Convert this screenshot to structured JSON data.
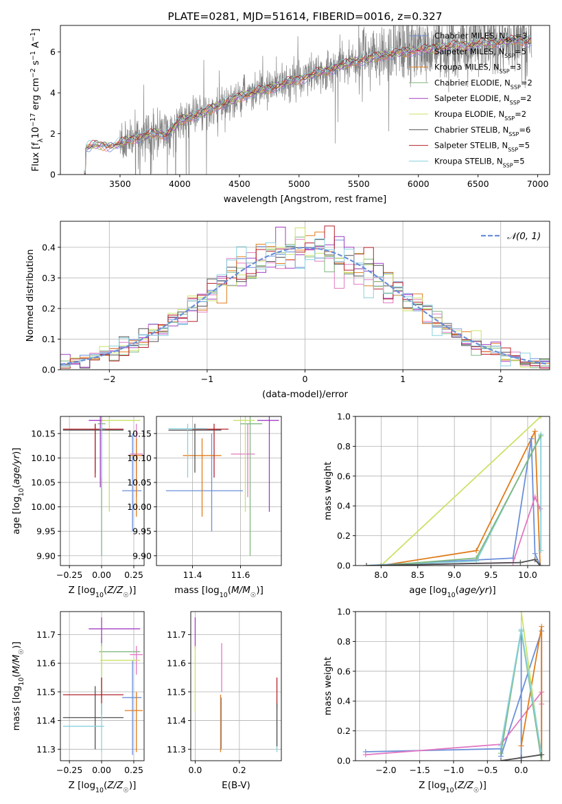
{
  "chart_data": [
    {
      "panel": "spectrum",
      "type": "line",
      "title": "PLATE=0281, MJD=51614, FIBERID=0016, z=0.327",
      "xlabel": "wavelength [Angstrom, rest frame]",
      "ylabel": "Flux [f_λ 10^-17 erg cm^-2 s^-1 A^-1]",
      "xlim": [
        3000,
        7100
      ],
      "ylim": [
        0,
        7.3
      ],
      "xticks": [
        "3500",
        "4000",
        "4500",
        "5000",
        "5500",
        "6000",
        "6500",
        "7000"
      ],
      "yticks": [
        "0",
        "2",
        "4",
        "6"
      ],
      "data_color": "#808080",
      "legend_position": "upper right",
      "legend": [
        {
          "name": "Chabrier MILES, N_SSP=3",
          "color": "#6a8fd8"
        },
        {
          "name": "Salpeter MILES, N_SSP=5",
          "color": "#e377c2"
        },
        {
          "name": "Kroupa MILES, N_SSP=3",
          "color": "#e07b1a"
        },
        {
          "name": "Chabrier ELODIE, N_SSP=2",
          "color": "#7fb77e"
        },
        {
          "name": "Salpeter ELODIE, N_SSP=2",
          "color": "#a23cc2"
        },
        {
          "name": "Kroupa ELODIE, N_SSP=2",
          "color": "#c9e265"
        },
        {
          "name": "Chabrier STELIB, N_SSP=6",
          "color": "#505050"
        },
        {
          "name": "Salpeter STELIB, N_SSP=5",
          "color": "#b5202a"
        },
        {
          "name": "Kroupa STELIB, N_SSP=5",
          "color": "#86d1dd"
        }
      ],
      "model_trend": [
        [
          3200,
          0
        ],
        [
          3210,
          1.3
        ],
        [
          3300,
          1.45
        ],
        [
          3450,
          1.4
        ],
        [
          3520,
          1.55
        ],
        [
          3600,
          1.75
        ],
        [
          3700,
          1.9
        ],
        [
          3800,
          2.0
        ],
        [
          3880,
          1.95
        ],
        [
          3950,
          2.3
        ],
        [
          4000,
          2.6
        ],
        [
          4100,
          2.85
        ],
        [
          4200,
          3.05
        ],
        [
          4300,
          3.3
        ],
        [
          4400,
          3.55
        ],
        [
          4500,
          3.8
        ],
        [
          4600,
          4.0
        ],
        [
          4700,
          4.15
        ],
        [
          4800,
          4.3
        ],
        [
          4900,
          4.5
        ],
        [
          5000,
          4.7
        ],
        [
          5100,
          4.85
        ],
        [
          5200,
          5.05
        ],
        [
          5300,
          5.25
        ],
        [
          5400,
          5.4
        ],
        [
          5500,
          5.6
        ],
        [
          5600,
          5.7
        ],
        [
          5700,
          5.8
        ],
        [
          5800,
          5.95
        ],
        [
          5900,
          6.0
        ],
        [
          6000,
          6.1
        ],
        [
          6100,
          6.15
        ],
        [
          6200,
          6.25
        ],
        [
          6300,
          6.3
        ],
        [
          6400,
          6.35
        ],
        [
          6500,
          6.4
        ],
        [
          6600,
          6.45
        ],
        [
          6700,
          6.5
        ],
        [
          6800,
          6.55
        ],
        [
          6950,
          6.55
        ]
      ]
    },
    {
      "panel": "residuals",
      "type": "histogram",
      "xlabel": "(data-model)/error",
      "ylabel": "Normed distribution",
      "xlim": [
        -2.5,
        2.5
      ],
      "ylim": [
        0,
        0.485
      ],
      "xticks": [
        "−2",
        "−1",
        "0",
        "1",
        "2"
      ],
      "yticks": [
        "0.0",
        "0.1",
        "0.2",
        "0.3",
        "0.4"
      ],
      "legend": [
        {
          "name": "𝒩(0, 1)",
          "color": "#6a8fd8"
        }
      ],
      "series_colors": [
        "#6a8fd8",
        "#e377c2",
        "#e07b1a",
        "#7fb77e",
        "#a23cc2",
        "#c9e265",
        "#505050",
        "#b5202a",
        "#86d1dd"
      ]
    },
    {
      "panel": "Z_vs_age",
      "type": "scatter",
      "xlabel": "Z [log10(Z/Z☉)]",
      "ylabel": "age [log10(age/yr)]",
      "xlim": [
        -0.32,
        0.33
      ],
      "ylim": [
        9.88,
        10.185
      ],
      "xticks": [
        "−0.25",
        "0.00",
        "0.25"
      ],
      "yticks": [
        "9.90",
        "9.95",
        "10.00",
        "10.05",
        "10.10",
        "10.15"
      ],
      "points": [
        {
          "color": "#6a8fd8",
          "x": 0.24,
          "y": 10.033,
          "xe": [
            0.16,
            0.31
          ],
          "ye": [
            9.95,
            10.15
          ]
        },
        {
          "color": "#e377c2",
          "x": 0.27,
          "y": 10.108,
          "xe": [
            0.22,
            0.32
          ],
          "ye": [
            10.02,
            10.17
          ]
        },
        {
          "color": "#e07b1a",
          "x": 0.27,
          "y": 10.105,
          "xe": [
            0.21,
            0.32
          ],
          "ye": [
            9.98,
            10.14
          ]
        },
        {
          "color": "#7fb77e",
          "x": 0.0,
          "y": 10.17,
          "xe": [
            -0.03,
            0.03
          ],
          "ye": [
            9.9,
            10.185
          ]
        },
        {
          "color": "#a23cc2",
          "x": -0.01,
          "y": 10.177,
          "xe": [
            -0.1,
            0.03
          ],
          "ye": [
            10.04,
            10.185
          ]
        },
        {
          "color": "#c9e265",
          "x": 0.06,
          "y": 10.177,
          "xe": [
            0.0,
            0.3
          ],
          "ye": [
            9.99,
            10.185
          ]
        },
        {
          "color": "#505050",
          "x": -0.05,
          "y": 10.157,
          "xe": [
            -0.3,
            0.17
          ],
          "ye": [
            10.07,
            10.17
          ]
        },
        {
          "color": "#b5202a",
          "x": -0.05,
          "y": 10.159,
          "xe": [
            -0.3,
            0.17
          ],
          "ye": [
            10.06,
            10.17
          ]
        },
        {
          "color": "#86d1dd",
          "x": 0.0,
          "y": 10.16,
          "xe": [
            -0.02,
            0.03
          ],
          "ye": [
            10.06,
            10.17
          ]
        }
      ]
    },
    {
      "panel": "mass_vs_age",
      "type": "scatter",
      "xlabel": "mass [log10(M/M☉)]",
      "ylabel": "",
      "xlim": [
        11.25,
        11.77
      ],
      "ylim": [
        9.88,
        10.185
      ],
      "xticks": [
        "11.4",
        "11.6"
      ],
      "yticks": [
        "9.90",
        "9.95",
        "10.00",
        "10.05",
        "10.10",
        "10.15"
      ],
      "points": [
        {
          "color": "#6a8fd8",
          "x": 11.48,
          "y": 10.033,
          "xe": [
            11.29,
            11.61
          ],
          "ye": [
            9.95,
            10.15
          ]
        },
        {
          "color": "#e377c2",
          "x": 11.63,
          "y": 10.108,
          "xe": [
            11.56,
            11.66
          ],
          "ye": [
            10.02,
            10.17
          ]
        },
        {
          "color": "#e07b1a",
          "x": 11.44,
          "y": 10.105,
          "xe": [
            11.36,
            11.52
          ],
          "ye": [
            9.98,
            10.14
          ]
        },
        {
          "color": "#7fb77e",
          "x": 11.64,
          "y": 10.17,
          "xe": [
            11.6,
            11.69
          ],
          "ye": [
            9.9,
            10.185
          ]
        },
        {
          "color": "#a23cc2",
          "x": 11.72,
          "y": 10.177,
          "xe": [
            11.67,
            11.76
          ],
          "ye": [
            9.99,
            10.185
          ]
        },
        {
          "color": "#c9e265",
          "x": 11.62,
          "y": 10.177,
          "xe": [
            11.57,
            11.66
          ],
          "ye": [
            9.99,
            10.185
          ]
        },
        {
          "color": "#505050",
          "x": 11.41,
          "y": 10.157,
          "xe": [
            11.3,
            11.52
          ],
          "ye": [
            10.07,
            10.17
          ]
        },
        {
          "color": "#b5202a",
          "x": 11.49,
          "y": 10.159,
          "xe": [
            11.4,
            11.55
          ],
          "ye": [
            10.06,
            10.17
          ]
        },
        {
          "color": "#86d1dd",
          "x": 11.38,
          "y": 10.16,
          "xe": [
            11.3,
            11.46
          ],
          "ye": [
            10.06,
            10.17
          ]
        }
      ]
    },
    {
      "panel": "age_vs_massweight",
      "type": "line",
      "xlabel": "age [log10(age/yr)]",
      "ylabel": "mass weight",
      "xlim": [
        7.65,
        10.3
      ],
      "ylim": [
        0,
        1.0
      ],
      "xticks": [
        "8.0",
        "8.5",
        "9.0",
        "9.5",
        "10.0"
      ],
      "yticks": [
        "0.0",
        "0.2",
        "0.4",
        "0.6",
        "0.8",
        "1.0"
      ],
      "series": [
        {
          "color": "#c9e265",
          "points": [
            [
              8.0,
              0.0
            ],
            [
              10.18,
              1.0
            ]
          ]
        },
        {
          "color": "#e07b1a",
          "points": [
            [
              8.0,
              0.0
            ],
            [
              9.3,
              0.1
            ],
            [
              10.1,
              0.9
            ],
            [
              10.17,
              0.0
            ]
          ]
        },
        {
          "color": "#6a8fd8",
          "points": [
            [
              7.8,
              0.0
            ],
            [
              9.8,
              0.05
            ],
            [
              10.05,
              0.85
            ],
            [
              10.1,
              0.08
            ],
            [
              10.17,
              0.0
            ]
          ]
        },
        {
          "color": "#e377c2",
          "points": [
            [
              7.8,
              0.0
            ],
            [
              9.8,
              0.02
            ],
            [
              10.1,
              0.46
            ],
            [
              10.17,
              0.38
            ]
          ]
        },
        {
          "color": "#86d1dd",
          "points": [
            [
              7.8,
              0.0
            ],
            [
              9.3,
              0.03
            ],
            [
              10.18,
              0.88
            ],
            [
              10.18,
              0.1
            ]
          ]
        },
        {
          "color": "#7fb77e",
          "points": [
            [
              8.0,
              0.0
            ],
            [
              9.3,
              0.05
            ],
            [
              10.18,
              0.87
            ]
          ]
        },
        {
          "color": "#505050",
          "points": [
            [
              7.8,
              0.0
            ],
            [
              9.9,
              0.02
            ],
            [
              10.1,
              0.04
            ],
            [
              10.17,
              0.0
            ]
          ]
        }
      ]
    },
    {
      "panel": "Z_vs_mass",
      "type": "scatter",
      "xlabel": "Z [log10(Z/Z☉)]",
      "ylabel": "mass [log10(M/M☉)]",
      "xlim": [
        -0.32,
        0.33
      ],
      "ylim": [
        11.26,
        11.78
      ],
      "xticks": [
        "−0.25",
        "0.00",
        "0.25"
      ],
      "yticks": [
        "11.3",
        "11.4",
        "11.5",
        "11.6",
        "11.7"
      ],
      "points": [
        {
          "color": "#6a8fd8",
          "x": 0.24,
          "y": 11.48,
          "xe": [
            0.16,
            0.31
          ],
          "ye": [
            11.28,
            11.61
          ]
        },
        {
          "color": "#e377c2",
          "x": 0.27,
          "y": 11.63,
          "xe": [
            0.22,
            0.32
          ],
          "ye": [
            11.56,
            11.66
          ]
        },
        {
          "color": "#e07b1a",
          "x": 0.27,
          "y": 11.435,
          "xe": [
            0.18,
            0.32
          ],
          "ye": [
            11.29,
            11.5
          ]
        },
        {
          "color": "#7fb77e",
          "x": 0.0,
          "y": 11.64,
          "xe": [
            -0.02,
            0.3
          ],
          "ye": [
            11.48,
            11.69
          ]
        },
        {
          "color": "#a23cc2",
          "x": 0.0,
          "y": 11.72,
          "xe": [
            -0.1,
            0.3
          ],
          "ye": [
            11.67,
            11.76
          ]
        },
        {
          "color": "#c9e265",
          "x": 0.0,
          "y": 11.61,
          "xe": [
            -0.01,
            0.3
          ],
          "ye": [
            11.4,
            11.66
          ]
        },
        {
          "color": "#505050",
          "x": -0.05,
          "y": 11.41,
          "xe": [
            -0.3,
            0.17
          ],
          "ye": [
            11.3,
            11.52
          ]
        },
        {
          "color": "#b5202a",
          "x": 0.0,
          "y": 11.49,
          "xe": [
            -0.3,
            0.17
          ],
          "ye": [
            11.42,
            11.55
          ]
        },
        {
          "color": "#86d1dd",
          "x": 0.0,
          "y": 11.38,
          "xe": [
            -0.3,
            0.02
          ],
          "ye": [
            11.29,
            11.46
          ]
        }
      ]
    },
    {
      "panel": "EBV_vs_mass",
      "type": "scatter",
      "xlabel": "E(B-V)",
      "ylabel": "",
      "xlim": [
        -0.02,
        0.39
      ],
      "ylim": [
        11.26,
        11.78
      ],
      "xticks": [
        "0.0",
        "0.2"
      ],
      "yticks": [
        "11.3",
        "11.4",
        "11.5",
        "11.6",
        "11.7"
      ],
      "points": [
        {
          "color": "#a23cc2",
          "x": 0.0,
          "y": 11.72,
          "ye": [
            11.65,
            11.76
          ]
        },
        {
          "color": "#c9e265",
          "x": 0.0,
          "y": 11.55,
          "ye": [
            11.43,
            11.66
          ]
        },
        {
          "color": "#e377c2",
          "x": 0.12,
          "y": 11.6,
          "ye": [
            11.5,
            11.67
          ]
        },
        {
          "color": "#e07b1a",
          "x": 0.115,
          "y": 11.4,
          "ye": [
            11.29,
            11.49
          ]
        },
        {
          "color": "#6a8fd8",
          "x": 0.118,
          "y": 11.42,
          "ye": [
            11.3,
            11.48
          ]
        },
        {
          "color": "#b5202a",
          "x": 0.37,
          "y": 11.5,
          "ye": [
            11.44,
            11.55
          ]
        },
        {
          "color": "#86d1dd",
          "x": 0.37,
          "y": 11.38,
          "ye": [
            11.29,
            11.44
          ]
        },
        {
          "color": "#505050",
          "x": 0.37,
          "y": 11.4,
          "ye": [
            11.31,
            11.46
          ]
        }
      ]
    },
    {
      "panel": "Z_vs_massweight",
      "type": "line",
      "xlabel": "Z [log10(Z/Z☉)]",
      "ylabel": "mass weight",
      "xlim": [
        -2.45,
        0.42
      ],
      "ylim": [
        0,
        1.0
      ],
      "xticks": [
        "−2.0",
        "−1.5",
        "−1.0",
        "−0.5",
        "0.0"
      ],
      "yticks": [
        "0.0",
        "0.2",
        "0.4",
        "0.6",
        "0.8",
        "1.0"
      ],
      "series": [
        {
          "color": "#6a8fd8",
          "points": [
            [
              -2.3,
              0.06
            ],
            [
              -0.3,
              0.08
            ],
            [
              -0.3,
              0.03
            ],
            [
              0.3,
              0.87
            ],
            [
              0.3,
              0.0
            ],
            [
              0.0,
              0.88
            ],
            [
              0.0,
              0.0
            ]
          ]
        },
        {
          "color": "#e377c2",
          "points": [
            [
              -2.3,
              0.04
            ],
            [
              -0.3,
              0.11
            ],
            [
              0.3,
              0.46
            ],
            [
              0.3,
              0.38
            ]
          ]
        },
        {
          "color": "#e07b1a",
          "points": [
            [
              0.0,
              0.1
            ],
            [
              0.3,
              0.9
            ],
            [
              0.3,
              0.0
            ]
          ]
        },
        {
          "color": "#c9e265",
          "points": [
            [
              0.0,
              1.0
            ],
            [
              0.3,
              0.0
            ]
          ]
        },
        {
          "color": "#7fb77e",
          "points": [
            [
              -0.3,
              0.05
            ],
            [
              0.0,
              0.87
            ],
            [
              0.3,
              0.0
            ]
          ]
        },
        {
          "color": "#86d1dd",
          "points": [
            [
              -0.3,
              0.1
            ],
            [
              0.0,
              0.88
            ],
            [
              0.3,
              0.04
            ]
          ]
        },
        {
          "color": "#505050",
          "points": [
            [
              -0.3,
              0.0
            ],
            [
              0.0,
              0.02
            ],
            [
              0.3,
              0.04
            ]
          ]
        }
      ]
    }
  ]
}
